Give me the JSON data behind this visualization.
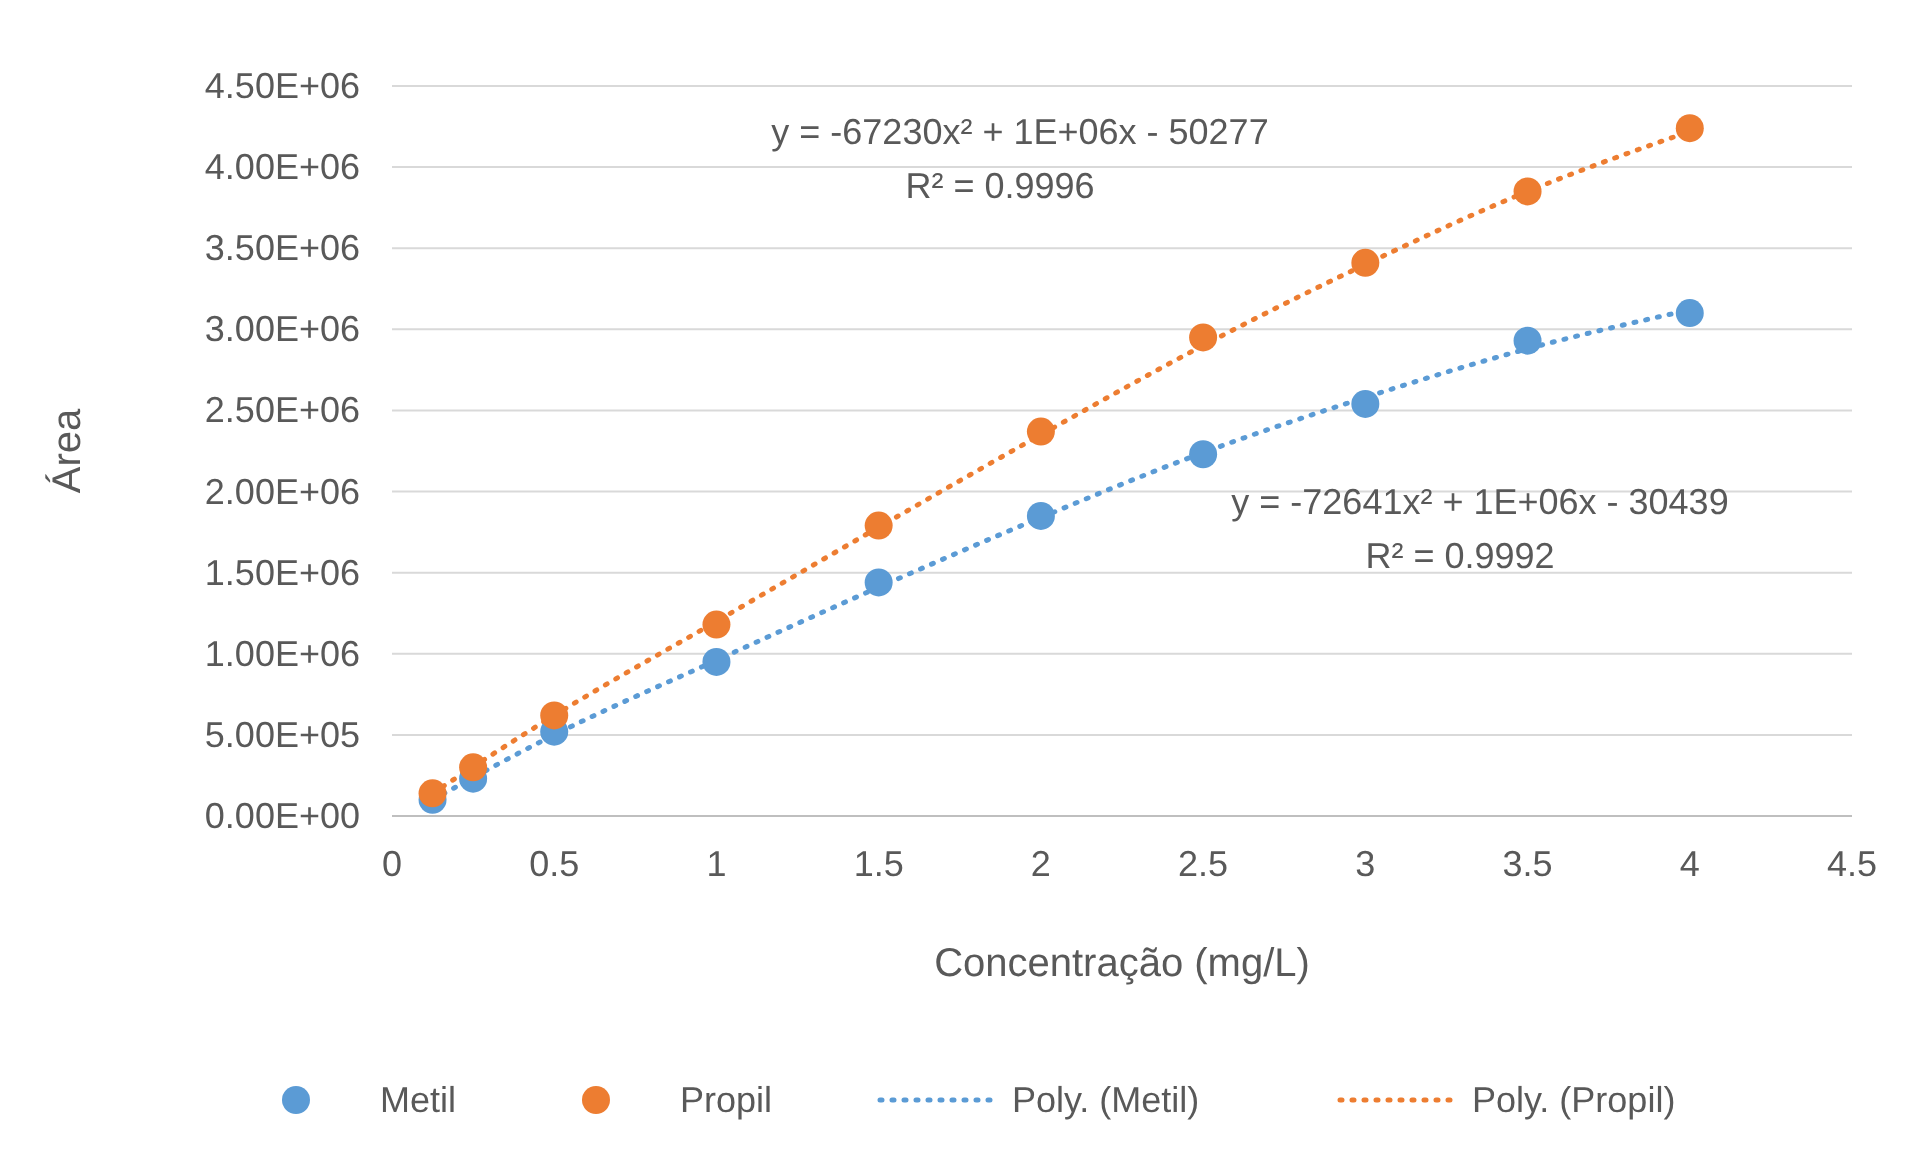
{
  "chart_data": {
    "type": "scatter",
    "xlabel": "Concentração (mg/L)",
    "ylabel": "Área",
    "xlim": [
      0,
      4.5
    ],
    "xticks": [
      0,
      0.5,
      1,
      1.5,
      2,
      2.5,
      3,
      3.5,
      4,
      4.5
    ],
    "ylim": [
      0,
      4500000
    ],
    "yticks": [
      {
        "value": 0,
        "label": "0.00E+00"
      },
      {
        "value": 500000,
        "label": "5.00E+05"
      },
      {
        "value": 1000000,
        "label": "1.00E+06"
      },
      {
        "value": 1500000,
        "label": "1.50E+06"
      },
      {
        "value": 2000000,
        "label": "2.00E+06"
      },
      {
        "value": 2500000,
        "label": "2.50E+06"
      },
      {
        "value": 3000000,
        "label": "3.00E+06"
      },
      {
        "value": 3500000,
        "label": "3.50E+06"
      },
      {
        "value": 4000000,
        "label": "4.00E+06"
      },
      {
        "value": 4500000,
        "label": "4.50E+06"
      }
    ],
    "grid": "y",
    "legend": "bottom",
    "annotations": [
      "y = -67230x² + 1E+06x - 50277\nR² = 0.9996",
      "y = -72641x² + 1E+06x - 30439\nR² = 0.9992"
    ],
    "series": [
      {
        "name": "Metil",
        "marker": "circle",
        "color": "#5b9bd5",
        "x": [
          0.125,
          0.25,
          0.5,
          1,
          1.5,
          2,
          2.5,
          3,
          3.5,
          4
        ],
        "values": [
          100000,
          230000,
          520000,
          950000,
          1440000,
          1850000,
          2230000,
          2540000,
          2930000,
          3100000
        ]
      },
      {
        "name": "Propil",
        "marker": "circle",
        "color": "#ed7d31",
        "x": [
          0.125,
          0.25,
          0.5,
          1,
          1.5,
          2,
          2.5,
          3,
          3.5,
          4
        ],
        "values": [
          140000,
          300000,
          620000,
          1180000,
          1790000,
          2370000,
          2950000,
          3410000,
          3850000,
          4240000
        ]
      },
      {
        "name": "Poly. (Metil)",
        "type": "line",
        "marker": "none",
        "line_style": "dotted",
        "color": "#5b9bd5",
        "x": [
          0.125,
          0.5,
          1,
          1.5,
          2,
          2.5,
          3,
          3.5,
          4
        ],
        "values": [
          100000,
          500000,
          960000,
          1410000,
          1840000,
          2240000,
          2580000,
          2880000,
          3120000
        ]
      },
      {
        "name": "Poly. (Propil)",
        "type": "line",
        "marker": "none",
        "line_style": "dotted",
        "color": "#ed7d31",
        "x": [
          0.125,
          0.5,
          1,
          1.5,
          2,
          2.5,
          3,
          3.5,
          4
        ],
        "values": [
          140000,
          620000,
          1200000,
          1780000,
          2350000,
          2900000,
          3400000,
          3850000,
          4220000
        ]
      }
    ]
  }
}
